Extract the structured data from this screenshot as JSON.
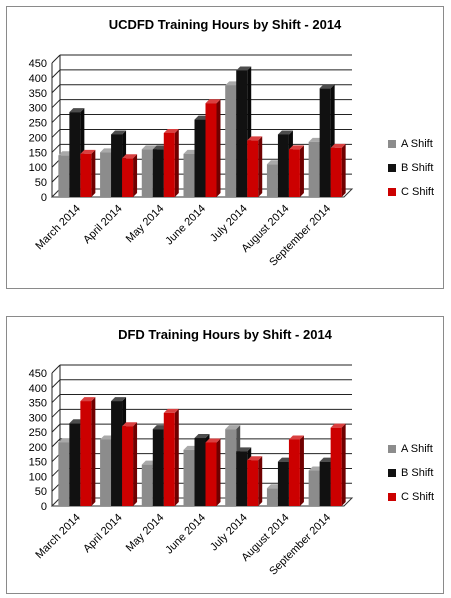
{
  "chart_data": [
    {
      "type": "bar",
      "title": "UCDFD Training Hours by Shift - 2014",
      "categories": [
        "March 2014",
        "April 2014",
        "May 2014",
        "June 2014",
        "July 2014",
        "August 2014",
        "September 2014"
      ],
      "series": [
        {
          "name": "A Shift",
          "color": "#8c8c8c",
          "values": [
            140,
            150,
            160,
            145,
            375,
            110,
            185
          ]
        },
        {
          "name": "B Shift",
          "color": "#111111",
          "values": [
            285,
            210,
            160,
            260,
            425,
            210,
            365
          ]
        },
        {
          "name": "C Shift",
          "color": "#cc0000",
          "values": [
            145,
            130,
            215,
            315,
            190,
            160,
            165
          ]
        }
      ],
      "ylim": [
        0,
        450
      ],
      "yticks": [
        "0",
        "50",
        "100",
        "150",
        "200",
        "250",
        "300",
        "350",
        "400",
        "450"
      ],
      "grid": true,
      "legend": "right"
    },
    {
      "type": "bar",
      "title": "DFD Training Hours by Shift - 2014",
      "categories": [
        "March 2014",
        "April 2014",
        "May 2014",
        "June 2014",
        "July 2014",
        "August 2014",
        "September 2014"
      ],
      "series": [
        {
          "name": "A Shift",
          "color": "#8c8c8c",
          "values": [
            215,
            225,
            140,
            190,
            260,
            60,
            120
          ]
        },
        {
          "name": "B Shift",
          "color": "#111111",
          "values": [
            280,
            355,
            260,
            230,
            185,
            150,
            150
          ]
        },
        {
          "name": "C Shift",
          "color": "#cc0000",
          "values": [
            355,
            270,
            315,
            215,
            155,
            225,
            265
          ]
        }
      ],
      "ylim": [
        0,
        450
      ],
      "yticks": [
        "0",
        "50",
        "100",
        "150",
        "200",
        "250",
        "300",
        "350",
        "400",
        "450"
      ],
      "grid": true,
      "legend": "right"
    }
  ]
}
